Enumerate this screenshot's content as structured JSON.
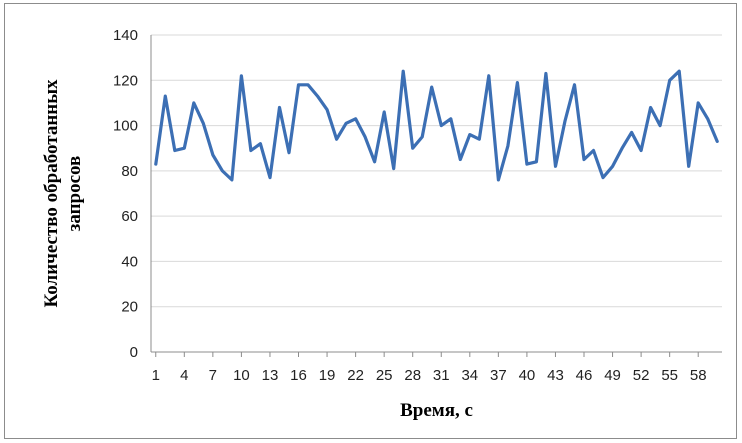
{
  "chart_data": {
    "type": "line",
    "title": "",
    "xlabel": "Время, с",
    "ylabel_lines": [
      "Количество обработанных",
      "запросов"
    ],
    "ylim": [
      0,
      140
    ],
    "yticks": [
      0,
      20,
      40,
      60,
      80,
      100,
      120,
      140
    ],
    "xticks": [
      1,
      4,
      7,
      10,
      13,
      16,
      19,
      22,
      25,
      28,
      31,
      34,
      37,
      40,
      43,
      46,
      49,
      52,
      55,
      58
    ],
    "grid": "horizontal",
    "legend": "none",
    "line_color": "#3c6fb4",
    "series": [
      {
        "x": [
          1,
          2,
          3,
          4,
          5,
          6,
          7,
          8,
          9,
          10,
          11,
          12,
          13,
          14,
          15,
          16,
          17,
          18,
          19,
          20,
          21,
          22,
          23,
          24,
          25,
          26,
          27,
          28,
          29,
          30,
          31,
          32,
          33,
          34,
          35,
          36,
          37,
          38,
          39,
          40,
          41,
          42,
          43,
          44,
          45,
          46,
          47,
          48,
          49,
          50,
          51,
          52,
          53,
          54,
          55,
          56,
          57,
          58,
          59,
          60
        ],
        "values": [
          83,
          113,
          89,
          90,
          110,
          101,
          87,
          80,
          76,
          122,
          89,
          92,
          77,
          108,
          88,
          118,
          118,
          113,
          107,
          94,
          101,
          103,
          95,
          84,
          106,
          81,
          124,
          90,
          95,
          117,
          100,
          103,
          85,
          96,
          94,
          122,
          76,
          91,
          119,
          83,
          84,
          123,
          82,
          102,
          118,
          85,
          89,
          77,
          82,
          90,
          97,
          89,
          108,
          100,
          120,
          124,
          82,
          110,
          103,
          93
        ]
      }
    ]
  }
}
